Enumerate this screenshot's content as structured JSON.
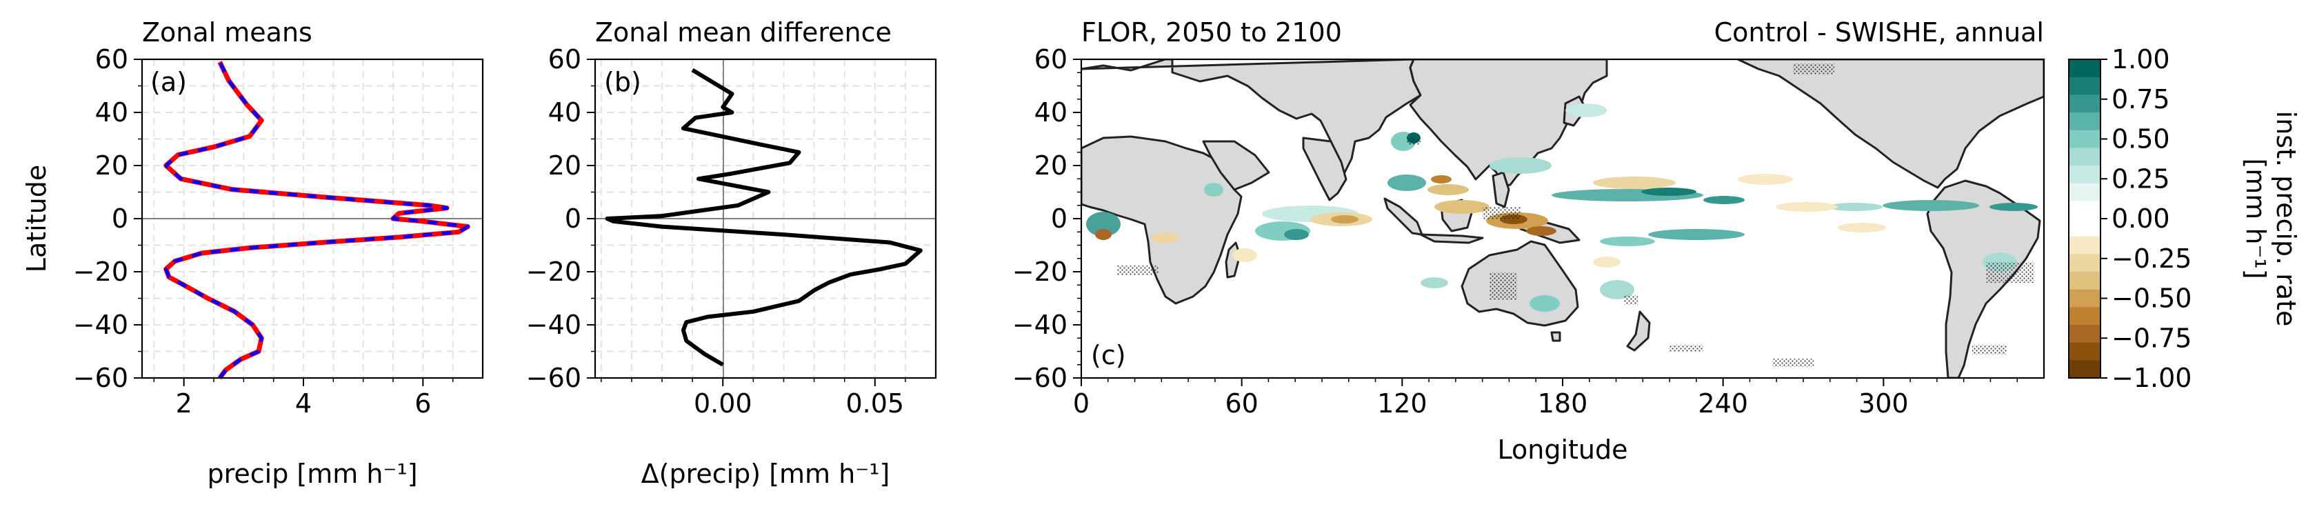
{
  "chart_data": [
    {
      "id": "a",
      "type": "line",
      "title": "Zonal means",
      "panel_label": "(a)",
      "xlabel": "precip [mm h⁻¹]",
      "ylabel": "Latitude",
      "xlim": [
        1.3,
        7.0
      ],
      "ylim": [
        -60,
        60
      ],
      "xticks": [
        "2",
        "4",
        "6"
      ],
      "yticks": [
        "−60",
        "−40",
        "−20",
        "0",
        "20",
        "40",
        "60"
      ],
      "grid": true,
      "colors": {
        "series_1": "#ff0000",
        "series_2": "#0000ff"
      },
      "series": [
        {
          "x": [
            2.6,
            2.7,
            2.95,
            3.25,
            3.3,
            3.15,
            2.85,
            2.4,
            2.0,
            1.75,
            1.7,
            1.85,
            2.3,
            3.1,
            4.3,
            5.6,
            6.6,
            6.75,
            6.0,
            5.5,
            5.6,
            6.4,
            6.1,
            4.4,
            2.8,
            1.95,
            1.7,
            1.9,
            2.5,
            3.1,
            3.3,
            3.05,
            2.75,
            2.6
          ],
          "y": [
            -60,
            -57,
            -53,
            -50,
            -45,
            -40,
            -35,
            -30,
            -25,
            -22,
            -19,
            -16,
            -13,
            -11,
            -9,
            -7,
            -5,
            -3,
            -1,
            0,
            2,
            4,
            5,
            8,
            11,
            15,
            20,
            24,
            27,
            31,
            37,
            43,
            52,
            59
          ]
        },
        {
          "x": [
            2.6,
            2.7,
            2.95,
            3.25,
            3.3,
            3.15,
            2.85,
            2.4,
            2.0,
            1.75,
            1.7,
            1.85,
            2.3,
            3.1,
            4.3,
            5.6,
            6.6,
            6.75,
            6.0,
            5.5,
            5.6,
            6.4,
            6.1,
            4.4,
            2.8,
            1.95,
            1.7,
            1.9,
            2.5,
            3.1,
            3.3,
            3.05,
            2.75,
            2.6
          ],
          "y": [
            -60,
            -57,
            -53,
            -50,
            -45,
            -40,
            -35,
            -30,
            -25,
            -22,
            -19,
            -16,
            -13,
            -11,
            -9,
            -7,
            -5,
            -3,
            -1,
            0,
            2,
            4,
            5,
            8,
            11,
            15,
            20,
            24,
            27,
            31,
            37,
            43,
            52,
            59
          ]
        }
      ]
    },
    {
      "id": "b",
      "type": "line",
      "title": "Zonal mean difference",
      "panel_label": "(b)",
      "xlabel": "Δ(precip) [mm h⁻¹]",
      "xlim": [
        -0.042,
        0.07
      ],
      "ylim": [
        -60,
        60
      ],
      "xticks": [
        "0.00",
        "0.05"
      ],
      "yticks": [
        "−60",
        "−40",
        "−20",
        "0",
        "20",
        "40",
        "60"
      ],
      "grid": true,
      "colors": {
        "series_1": "#000000"
      },
      "series": [
        {
          "x": [
            0.0,
            -0.006,
            -0.012,
            -0.013,
            -0.012,
            -0.005,
            0.01,
            0.025,
            0.03,
            0.035,
            0.042,
            0.052,
            0.06,
            0.063,
            0.065,
            0.055,
            0.02,
            -0.02,
            -0.036,
            -0.038,
            -0.02,
            0.005,
            0.015,
            -0.008,
            0.003,
            0.022,
            0.025,
            0.012,
            -0.013,
            -0.009,
            0.003,
            0.0,
            0.003,
            -0.01
          ],
          "y": [
            -55,
            -51,
            -46,
            -42,
            -39,
            -37,
            -35,
            -31,
            -27,
            -24,
            -21,
            -19,
            -17,
            -14,
            -12,
            -9,
            -6,
            -3,
            -1,
            0,
            1,
            5,
            10,
            15,
            17,
            21,
            25,
            28,
            34,
            38,
            40,
            42,
            47,
            56
          ]
        }
      ]
    },
    {
      "id": "c",
      "type": "heatmap",
      "title": "FLOR, 2050 to 2100",
      "title_right": "Control - SWISHE, annual",
      "panel_label": "(c)",
      "xlabel": "Longitude",
      "xlim": [
        0,
        360
      ],
      "ylim": [
        -60,
        60
      ],
      "xticks": [
        "0",
        "60",
        "120",
        "180",
        "240",
        "300"
      ],
      "yticks": [
        "−60",
        "−40",
        "−20",
        "0",
        "20",
        "40",
        "60"
      ],
      "colorbar": {
        "label": "inst. precip. rate\n[mm h⁻¹]",
        "ticks": [
          "1.00",
          "0.75",
          "0.50",
          "0.25",
          "0.00",
          "−0.25",
          "−0.50",
          "−0.75",
          "−1.00"
        ],
        "colors_top_to_bottom": [
          "#01665e",
          "#187e74",
          "#35978f",
          "#5ab2a8",
          "#80cdc1",
          "#a8dcd3",
          "#c7eae5",
          "#e6f4f1",
          "#ffffff",
          "#ffffff",
          "#f6e8c3",
          "#ecd5a0",
          "#dfc27d",
          "#cfa052",
          "#bf812d",
          "#a86823",
          "#8c510a",
          "#6e3f06"
        ]
      },
      "land_color": "#d9d9d9"
    }
  ]
}
